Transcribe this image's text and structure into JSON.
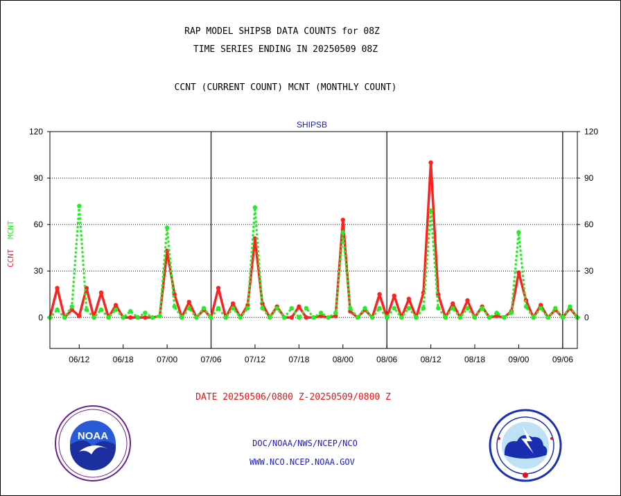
{
  "title_lines": [
    "RAP MODEL SHIPSB DATA COUNTS for 08Z",
    "TIME SERIES ENDING IN 20250509 08Z"
  ],
  "subtitle": "CCNT (CURRENT COUNT) MCNT (MONTHLY COUNT)",
  "date_range": "DATE 20250506/0800 Z-20250509/0800 Z",
  "footer": {
    "line1": "DOC/NOAA/NWS/NCEP/NCO",
    "line2": "WWW.NCO.NCEP.NOAA.GOV"
  },
  "logos": {
    "left": {
      "icon": "noaa-logo-icon",
      "text": "NOAA"
    },
    "right": {
      "icon": "nws-logo-icon"
    }
  },
  "colors": {
    "ccnt": "#ff2020",
    "mcnt": "#22ee22",
    "panel_title": "#1a1acc",
    "date": "#ee1111",
    "footer": "#1a1acc"
  },
  "chart_data": {
    "type": "line",
    "title": "SHIPSB",
    "ylabel": [
      "CCNT",
      "MCNT"
    ],
    "ylim": [
      -20,
      120
    ],
    "yticks": [
      0,
      30,
      60,
      90,
      120
    ],
    "grid": "horizontal-dotted",
    "x_tick_labels": [
      "06/12",
      "06/18",
      "07/00",
      "07/06",
      "07/12",
      "07/18",
      "08/00",
      "08/06",
      "08/12",
      "08/18",
      "09/00",
      "09/06"
    ],
    "x_tick_index": [
      4,
      10,
      16,
      22,
      28,
      34,
      40,
      46,
      52,
      58,
      64,
      70
    ],
    "day_boundaries_index": [
      22,
      46,
      70
    ],
    "series": [
      {
        "name": "CCNT",
        "color": "#ff2020",
        "style": "solid",
        "values": [
          0,
          19,
          0,
          5,
          1,
          19,
          0,
          16,
          0,
          8,
          0,
          0,
          0,
          0,
          0,
          1,
          43,
          15,
          0,
          10,
          0,
          5,
          0,
          19,
          0,
          9,
          0,
          8,
          51,
          9,
          0,
          7,
          0,
          0,
          7,
          0,
          0,
          1,
          0,
          1,
          63,
          4,
          0,
          5,
          0,
          15,
          0,
          14,
          0,
          12,
          0,
          16,
          100,
          15,
          0,
          9,
          0,
          11,
          0,
          7,
          0,
          1,
          0,
          4,
          29,
          11,
          0,
          8,
          0,
          5,
          0,
          6,
          0
        ]
      },
      {
        "name": "MCNT",
        "color": "#22ee22",
        "style": "dotted",
        "values": [
          0,
          5,
          0,
          7,
          72,
          5,
          0,
          5,
          0,
          5,
          0,
          4,
          0,
          3,
          0,
          1,
          58,
          7,
          0,
          6,
          0,
          6,
          0,
          6,
          0,
          6,
          0,
          6,
          71,
          6,
          0,
          6,
          0,
          6,
          0,
          6,
          0,
          3,
          0,
          3,
          55,
          6,
          0,
          6,
          0,
          6,
          0,
          6,
          0,
          6,
          0,
          6,
          69,
          6,
          0,
          6,
          0,
          6,
          0,
          6,
          0,
          3,
          0,
          3,
          55,
          7,
          0,
          6,
          0,
          6,
          0,
          7,
          0
        ]
      }
    ]
  }
}
